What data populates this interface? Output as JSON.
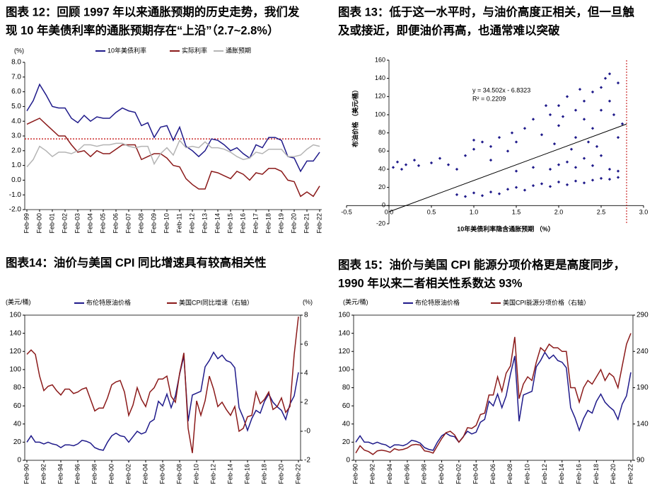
{
  "chart_data": [
    {
      "type": "line",
      "title": [
        "图表 12：回顾 1997 年以来通胀预期的历史走势，我们发",
        "现 10 年美债利率的通胀预期存在“上沿”（2.7~2.8%）"
      ],
      "y_unit": "(%)",
      "categories": [
        "Feb-99",
        null,
        "Feb-00",
        null,
        "Feb-01",
        null,
        "Feb-02",
        null,
        "Feb-03",
        null,
        "Feb-04",
        null,
        "Feb-05",
        null,
        "Feb-06",
        null,
        "Feb-07",
        null,
        "Feb-08",
        null,
        "Feb-09",
        null,
        "Feb-10",
        null,
        "Feb-11",
        null,
        "Feb-12",
        null,
        "Feb-13",
        null,
        "Feb-14",
        null,
        "Feb-15",
        null,
        "Feb-16",
        null,
        "Feb-17",
        null,
        "Feb-18",
        null,
        "Feb-19",
        null,
        "Feb-20",
        null,
        "Feb-21",
        null,
        "Feb-22"
      ],
      "series": [
        {
          "name": "10年美债利率",
          "color": "#1f1a8a",
          "values": [
            4.7,
            5.4,
            6.5,
            5.8,
            5.0,
            4.9,
            4.9,
            4.2,
            3.9,
            4.4,
            4.0,
            4.3,
            4.2,
            4.2,
            4.6,
            4.9,
            4.7,
            4.6,
            3.7,
            3.9,
            2.9,
            3.6,
            3.7,
            2.7,
            3.6,
            2.3,
            2.0,
            1.6,
            2.0,
            2.8,
            2.7,
            2.4,
            2.0,
            2.2,
            1.8,
            1.5,
            2.4,
            2.2,
            2.9,
            2.9,
            2.7,
            1.6,
            1.5,
            0.6,
            1.3,
            1.3,
            1.9
          ]
        },
        {
          "name": "实际利率",
          "color": "#8b1a1a",
          "values": [
            3.8,
            4.0,
            4.2,
            3.8,
            3.4,
            3.0,
            3.0,
            2.4,
            1.9,
            2.0,
            1.6,
            2.0,
            1.8,
            1.8,
            2.1,
            2.4,
            2.4,
            2.4,
            1.4,
            1.6,
            1.8,
            1.8,
            1.5,
            1.0,
            0.9,
            0.1,
            -0.3,
            -0.6,
            -0.6,
            0.6,
            0.5,
            0.3,
            0.1,
            0.6,
            0.4,
            0.0,
            0.5,
            0.4,
            0.8,
            0.8,
            0.6,
            0.0,
            -0.1,
            -1.1,
            -0.8,
            -1.1,
            -0.4
          ]
        },
        {
          "name": "通胀预期",
          "color": "#b4b4b4",
          "values": [
            0.9,
            1.4,
            2.3,
            2.0,
            1.6,
            1.9,
            1.9,
            1.8,
            2.0,
            2.4,
            2.4,
            2.3,
            2.4,
            2.4,
            2.5,
            2.5,
            2.3,
            2.2,
            2.3,
            2.3,
            1.1,
            1.8,
            2.2,
            1.7,
            2.7,
            2.2,
            2.3,
            2.2,
            2.6,
            2.2,
            2.2,
            2.1,
            1.9,
            1.6,
            1.4,
            1.5,
            1.9,
            1.8,
            2.1,
            2.1,
            2.1,
            1.6,
            1.6,
            1.7,
            2.1,
            2.4,
            2.3
          ]
        }
      ],
      "ylim": [
        -2,
        8
      ],
      "yticks": [
        {
          "value": 8,
          "label": "8.0"
        },
        {
          "value": 7,
          "label": "7.0"
        },
        {
          "value": 6,
          "label": "6.0"
        },
        {
          "value": 5,
          "label": "5.0"
        },
        {
          "value": 4,
          "label": "4.0"
        },
        {
          "value": 3,
          "label": "3.0"
        },
        {
          "value": 2,
          "label": "2.0"
        },
        {
          "value": 1,
          "label": "1.0"
        },
        {
          "value": 0,
          "label": "0.0"
        },
        {
          "value": -1,
          "label": "-1.0"
        },
        {
          "value": -2,
          "label": "-2.0"
        }
      ],
      "hline": 2.8,
      "hline_color": "#c00000"
    },
    {
      "type": "scatter",
      "title": [
        "图表 13：低于这一水平时，与油价高度正相关，但一旦触",
        "及或接近，即便油价再高，也通常难以突破"
      ],
      "x_label": "10年美债利率隐含通胀预期 （%）",
      "y_label": "布油价格 （美元/桶）",
      "color": "#1f1a8a",
      "x": [
        0.8,
        0.9,
        1.0,
        1.1,
        1.2,
        1.3,
        1.4,
        1.5,
        1.6,
        1.7,
        1.8,
        1.9,
        2.0,
        2.1,
        2.2,
        2.3,
        2.4,
        2.5,
        2.6,
        2.7,
        0.05,
        0.1,
        0.15,
        0.2,
        0.3,
        0.35,
        0.5,
        0.6,
        0.7,
        0.8,
        1.5,
        1.7,
        1.9,
        2.0,
        2.2,
        2.4,
        2.6,
        2.7,
        2.5,
        2.3,
        2.1,
        0.9,
        1.0,
        1.1,
        1.2,
        1.3,
        1.4,
        1.2,
        1.0,
        1.45,
        1.5,
        1.6,
        1.7,
        1.8,
        1.9,
        2.0,
        2.0,
        2.1,
        2.2,
        2.2,
        2.3,
        2.3,
        2.4,
        2.4,
        2.5,
        2.5,
        2.55,
        2.6,
        2.6,
        2.65,
        2.7,
        2.7,
        2.45,
        2.35,
        2.15,
        1.95,
        1.85,
        2.05,
        2.25,
        2.75
      ],
      "values": [
        12,
        10,
        14,
        11,
        15,
        13,
        18,
        20,
        17,
        22,
        24,
        21,
        26,
        23,
        27,
        25,
        28,
        30,
        29,
        31,
        42,
        48,
        40,
        45,
        50,
        44,
        47,
        52,
        45,
        40,
        38,
        42,
        40,
        45,
        42,
        44,
        40,
        38,
        55,
        52,
        48,
        55,
        62,
        70,
        65,
        75,
        60,
        50,
        72,
        80,
        70,
        85,
        95,
        78,
        100,
        110,
        88,
        120,
        105,
        75,
        115,
        95,
        125,
        85,
        130,
        105,
        140,
        145,
        115,
        100,
        135,
        75,
        65,
        70,
        62,
        68,
        110,
        98,
        128,
        90
      ],
      "xlim": [
        -0.5,
        3.0
      ],
      "xticks": [
        -0.5,
        {
          "value": 0,
          "label": "0.0"
        },
        0.5,
        {
          "value": 1,
          "label": "1.0"
        },
        1.5,
        {
          "value": 2,
          "label": "2.0"
        },
        2.5,
        {
          "value": 3,
          "label": "3.0"
        }
      ],
      "ylim": [
        -20,
        160
      ],
      "yticks": [
        160,
        140,
        120,
        100,
        80,
        60,
        40,
        20,
        0,
        -20
      ],
      "trendline": {
        "slope": 34.502,
        "intercept": -6.8323,
        "color": "#000000"
      },
      "annotations": [
        "y = 34.502x - 6.8323",
        "R² = 0.2209"
      ],
      "vline": 2.8,
      "vline_color": "#c00000"
    },
    {
      "type": "line",
      "title": [
        "图表14：油价与美国 CPI 同比增速具有较高相关性"
      ],
      "y_unit": "(美元/桶)",
      "y2_unit": "(%)",
      "categories": [
        "Feb-90",
        null,
        null,
        null,
        "Feb-92",
        null,
        null,
        null,
        "Feb-94",
        null,
        null,
        null,
        "Feb-96",
        null,
        null,
        null,
        "Feb-98",
        null,
        null,
        null,
        "Feb-00",
        null,
        null,
        null,
        "Feb-02",
        null,
        null,
        null,
        "Feb-04",
        null,
        null,
        null,
        "Feb-06",
        null,
        null,
        null,
        "Feb-08",
        null,
        null,
        null,
        "Feb-10",
        null,
        null,
        null,
        "Feb-12",
        null,
        null,
        null,
        "Feb-14",
        null,
        null,
        null,
        "Feb-16",
        null,
        null,
        null,
        "Feb-18",
        null,
        null,
        null,
        "Feb-20",
        null,
        null,
        null,
        "Feb-22"
      ],
      "series": [
        {
          "name": "布伦特原油价格",
          "color": "#1f1a8a",
          "values": [
            20,
            27,
            20,
            20,
            18,
            20,
            18,
            17,
            14,
            17,
            17,
            16,
            18,
            22,
            21,
            19,
            14,
            12,
            11,
            20,
            27,
            30,
            27,
            26,
            20,
            26,
            32,
            29,
            31,
            42,
            45,
            65,
            60,
            73,
            58,
            71,
            95,
            115,
            43,
            72,
            74,
            76,
            103,
            110,
            119,
            112,
            116,
            110,
            108,
            102,
            58,
            47,
            33,
            46,
            55,
            52,
            65,
            73,
            64,
            59,
            55,
            45,
            62,
            71,
            97
          ]
        },
        {
          "name": "美国CPI同比增速（右轴）",
          "color": "#8b1a1a",
          "axis": "y2",
          "values": [
            5.3,
            5.6,
            5.3,
            3.8,
            2.8,
            3.1,
            3.2,
            2.8,
            2.5,
            2.9,
            2.9,
            2.6,
            2.7,
            2.9,
            3.0,
            2.2,
            1.4,
            1.6,
            1.6,
            2.3,
            3.2,
            3.4,
            3.5,
            2.7,
            1.1,
            1.8,
            3.0,
            2.2,
            1.7,
            2.7,
            3.0,
            3.6,
            3.6,
            3.8,
            2.4,
            2.0,
            4.0,
            5.4,
            0.2,
            -1.5,
            2.1,
            1.1,
            2.1,
            3.8,
            2.9,
            1.7,
            2.0,
            1.5,
            1.1,
            1.7,
            0.0,
            0.2,
            1.0,
            1.1,
            2.7,
            1.9,
            2.2,
            2.7,
            1.5,
            1.7,
            2.3,
            1.3,
            1.7,
            5.3,
            7.9
          ]
        }
      ],
      "ylim": [
        0,
        160
      ],
      "yticks": [
        160,
        140,
        120,
        100,
        80,
        60,
        40,
        20,
        0
      ],
      "y2lim": [
        -2,
        8
      ],
      "y2ticks": [
        8,
        6,
        4,
        2,
        {
          "value": 0,
          "label": "-0"
        },
        -2
      ]
    },
    {
      "type": "line",
      "title": [
        "图表 15：油价与美国 CPI 能源分项价格更是高度同步，",
        "1990 年以来二者相关性系数达 93%"
      ],
      "y_unit": "(美元/桶)",
      "categories": [
        "Feb-90",
        null,
        null,
        null,
        "Feb-92",
        null,
        null,
        null,
        "Feb-94",
        null,
        null,
        null,
        "Feb-96",
        null,
        null,
        null,
        "Feb-98",
        null,
        null,
        null,
        "Feb-00",
        null,
        null,
        null,
        "Feb-02",
        null,
        null,
        null,
        "Feb-04",
        null,
        null,
        null,
        "Feb-06",
        null,
        null,
        null,
        "Feb-08",
        null,
        null,
        null,
        "Feb-10",
        null,
        null,
        null,
        "Feb-12",
        null,
        null,
        null,
        "Feb-14",
        null,
        null,
        null,
        "Feb-16",
        null,
        null,
        null,
        "Feb-18",
        null,
        null,
        null,
        "Feb-20",
        null,
        null,
        null,
        "Feb-22"
      ],
      "series": [
        {
          "name": "布伦特原油价格",
          "color": "#1f1a8a",
          "values": [
            20,
            27,
            20,
            20,
            18,
            20,
            18,
            17,
            14,
            17,
            17,
            16,
            18,
            22,
            21,
            19,
            14,
            12,
            11,
            20,
            27,
            30,
            27,
            26,
            20,
            26,
            32,
            29,
            31,
            42,
            45,
            65,
            60,
            73,
            58,
            71,
            95,
            115,
            43,
            72,
            74,
            76,
            103,
            110,
            119,
            112,
            116,
            110,
            108,
            102,
            58,
            47,
            33,
            46,
            55,
            52,
            65,
            73,
            64,
            59,
            55,
            45,
            62,
            71,
            97
          ]
        },
        {
          "name": "美国CPI能源分项价格（右轴）",
          "color": "#8b1a1a",
          "axis": "y2",
          "values": [
            100,
            110,
            104,
            102,
            98,
            103,
            104,
            103,
            101,
            106,
            104,
            105,
            107,
            111,
            112,
            111,
            103,
            102,
            100,
            110,
            120,
            128,
            130,
            125,
            115,
            122,
            135,
            134,
            138,
            153,
            155,
            180,
            180,
            205,
            185,
            210,
            220,
            260,
            175,
            195,
            205,
            200,
            225,
            245,
            240,
            250,
            245,
            245,
            240,
            240,
            190,
            190,
            170,
            190,
            200,
            195,
            205,
            215,
            200,
            210,
            205,
            190,
            220,
            250,
            265
          ]
        }
      ],
      "ylim": [
        0,
        160
      ],
      "yticks": [
        160,
        140,
        120,
        100,
        80,
        60,
        40,
        20,
        0
      ],
      "y2lim": [
        90,
        290
      ],
      "y2ticks": [
        290,
        240,
        190,
        140,
        90
      ]
    }
  ]
}
